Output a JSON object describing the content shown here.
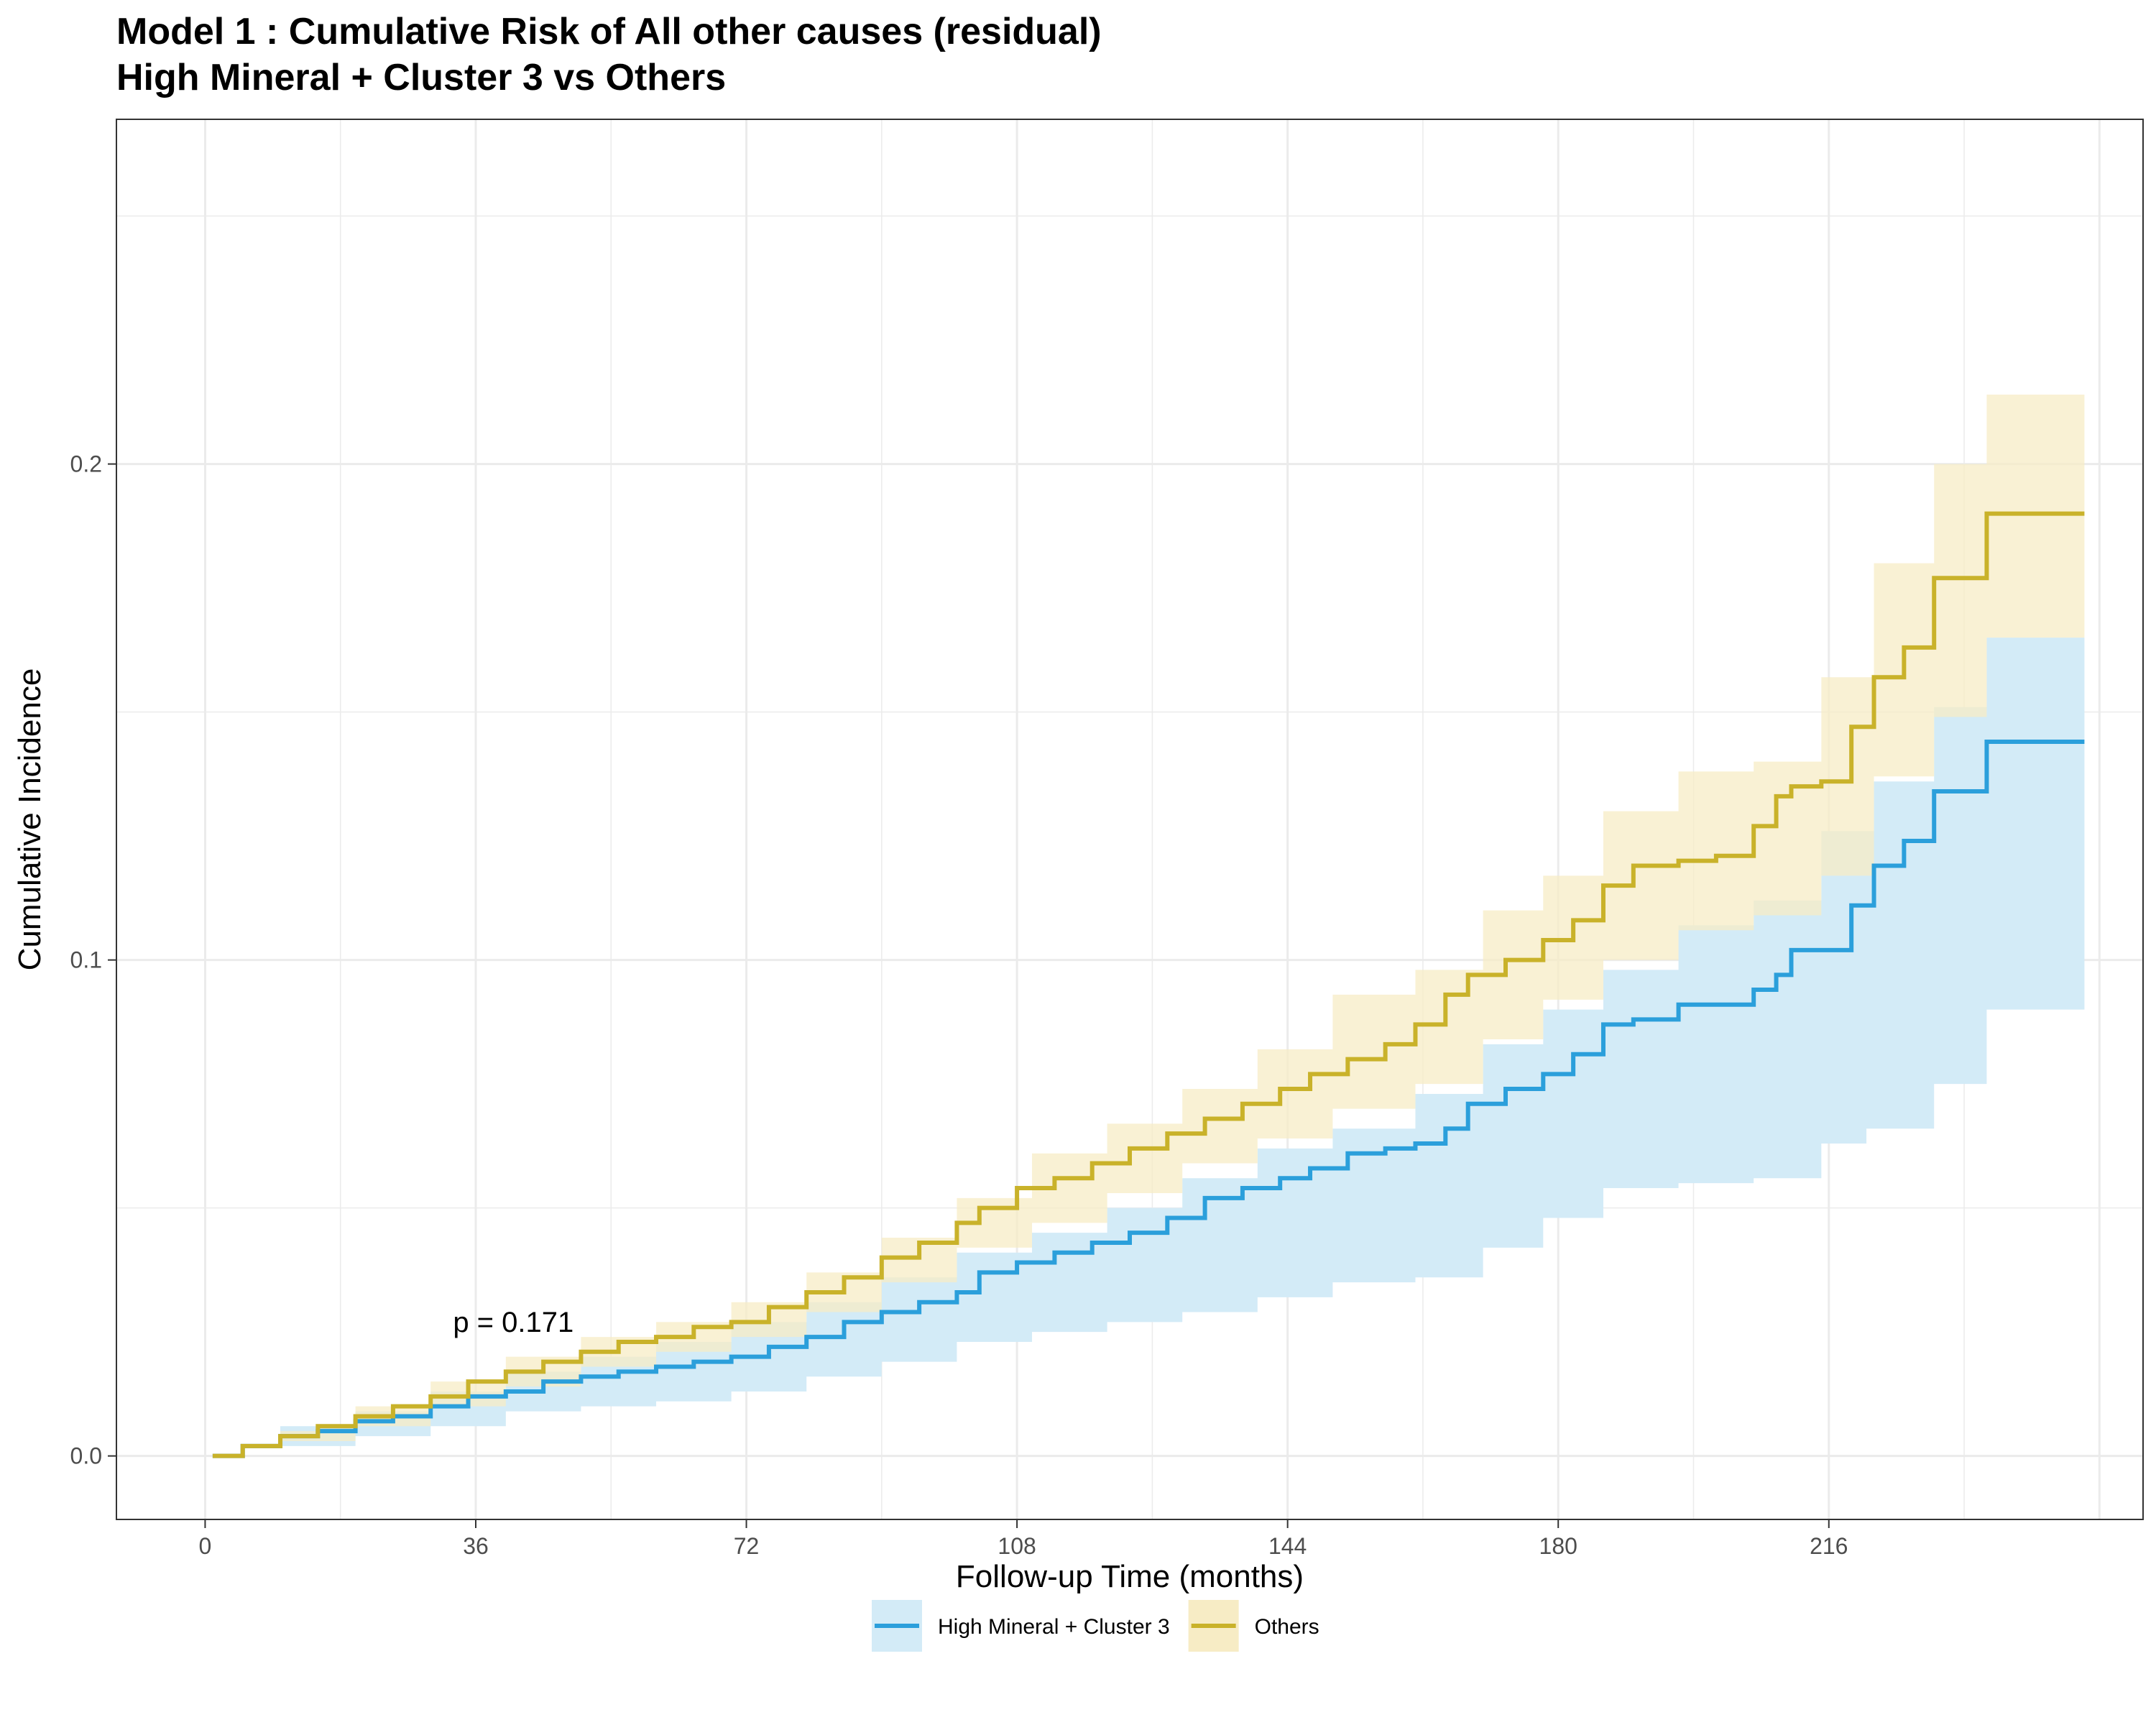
{
  "chart_data": {
    "type": "line",
    "title": "Model 1 : Cumulative Risk of All other causes (residual)",
    "subtitle": "High Mineral + Cluster 3 vs Others",
    "xlabel": "Follow-up Time (months)",
    "ylabel": "Cumulative Incidence",
    "xlim": [
      -11.8,
      257.8
    ],
    "ylim": [
      -0.0128,
      0.2695
    ],
    "x_ticks": [
      0,
      36,
      72,
      108,
      144,
      180,
      216
    ],
    "x_tick_labels": [
      "0",
      "36",
      "72",
      "108",
      "144",
      "180",
      "216"
    ],
    "y_ticks": [
      0.0,
      0.1,
      0.2
    ],
    "y_tick_labels": [
      "0.0",
      "0.1",
      "0.2"
    ],
    "annotation": {
      "text": "p = 0.171",
      "x": 41,
      "y": 0.025
    },
    "grid": true,
    "legend_position": "bottom",
    "series": [
      {
        "name": "High Mineral + Cluster 3",
        "color": "#2b9fdb",
        "band_color": "#d3ebf7",
        "step": true,
        "points": [
          [
            1,
            0
          ],
          [
            5,
            0.002
          ],
          [
            10,
            0.004
          ],
          [
            15,
            0.005
          ],
          [
            20,
            0.007
          ],
          [
            25,
            0.008
          ],
          [
            30,
            0.01
          ],
          [
            35,
            0.012
          ],
          [
            40,
            0.013
          ],
          [
            45,
            0.015
          ],
          [
            50,
            0.016
          ],
          [
            55,
            0.017
          ],
          [
            60,
            0.018
          ],
          [
            65,
            0.019
          ],
          [
            70,
            0.02
          ],
          [
            75,
            0.022
          ],
          [
            80,
            0.024
          ],
          [
            85,
            0.027
          ],
          [
            90,
            0.029
          ],
          [
            95,
            0.031
          ],
          [
            100,
            0.033
          ],
          [
            103,
            0.037
          ],
          [
            108,
            0.039
          ],
          [
            113,
            0.041
          ],
          [
            118,
            0.043
          ],
          [
            123,
            0.045
          ],
          [
            128,
            0.048
          ],
          [
            133,
            0.052
          ],
          [
            138,
            0.054
          ],
          [
            143,
            0.056
          ],
          [
            147,
            0.058
          ],
          [
            152,
            0.061
          ],
          [
            157,
            0.062
          ],
          [
            161,
            0.063
          ],
          [
            165,
            0.066
          ],
          [
            168,
            0.071
          ],
          [
            173,
            0.074
          ],
          [
            178,
            0.077
          ],
          [
            182,
            0.081
          ],
          [
            186,
            0.087
          ],
          [
            190,
            0.088
          ],
          [
            196,
            0.091
          ],
          [
            201,
            0.091
          ],
          [
            206,
            0.094
          ],
          [
            209,
            0.097
          ],
          [
            211,
            0.102
          ],
          [
            215,
            0.102
          ],
          [
            219,
            0.111
          ],
          [
            222,
            0.119
          ],
          [
            226,
            0.124
          ],
          [
            230,
            0.134
          ],
          [
            237,
            0.144
          ],
          [
            250,
            0.144
          ]
        ],
        "lower": [
          [
            1,
            0
          ],
          [
            10,
            0.002
          ],
          [
            20,
            0.004
          ],
          [
            30,
            0.006
          ],
          [
            40,
            0.009
          ],
          [
            50,
            0.01
          ],
          [
            60,
            0.011
          ],
          [
            70,
            0.013
          ],
          [
            80,
            0.016
          ],
          [
            90,
            0.019
          ],
          [
            100,
            0.023
          ],
          [
            110,
            0.025
          ],
          [
            120,
            0.027
          ],
          [
            130,
            0.029
          ],
          [
            140,
            0.032
          ],
          [
            150,
            0.035
          ],
          [
            161,
            0.036
          ],
          [
            170,
            0.042
          ],
          [
            178,
            0.048
          ],
          [
            186,
            0.054
          ],
          [
            196,
            0.055
          ],
          [
            206,
            0.056
          ],
          [
            215,
            0.063
          ],
          [
            221,
            0.066
          ],
          [
            230,
            0.075
          ],
          [
            237,
            0.09
          ],
          [
            250,
            0.09
          ]
        ],
        "upper": [
          [
            1,
            0
          ],
          [
            10,
            0.006
          ],
          [
            20,
            0.009
          ],
          [
            30,
            0.013
          ],
          [
            40,
            0.017
          ],
          [
            50,
            0.02
          ],
          [
            60,
            0.023
          ],
          [
            70,
            0.027
          ],
          [
            80,
            0.031
          ],
          [
            90,
            0.036
          ],
          [
            100,
            0.041
          ],
          [
            110,
            0.045
          ],
          [
            120,
            0.05
          ],
          [
            130,
            0.056
          ],
          [
            140,
            0.062
          ],
          [
            150,
            0.066
          ],
          [
            161,
            0.073
          ],
          [
            170,
            0.083
          ],
          [
            178,
            0.09
          ],
          [
            186,
            0.098
          ],
          [
            196,
            0.107
          ],
          [
            206,
            0.112
          ],
          [
            215,
            0.126
          ],
          [
            222,
            0.136
          ],
          [
            230,
            0.151
          ],
          [
            237,
            0.165
          ],
          [
            250,
            0.165
          ]
        ]
      },
      {
        "name": "Others",
        "color": "#c9b22a",
        "band_color": "#f7ecc5",
        "step": true,
        "points": [
          [
            1,
            0
          ],
          [
            5,
            0.002
          ],
          [
            10,
            0.004
          ],
          [
            15,
            0.006
          ],
          [
            20,
            0.008
          ],
          [
            25,
            0.01
          ],
          [
            30,
            0.012
          ],
          [
            35,
            0.015
          ],
          [
            40,
            0.017
          ],
          [
            45,
            0.019
          ],
          [
            50,
            0.021
          ],
          [
            55,
            0.023
          ],
          [
            60,
            0.024
          ],
          [
            65,
            0.026
          ],
          [
            70,
            0.027
          ],
          [
            75,
            0.03
          ],
          [
            80,
            0.033
          ],
          [
            85,
            0.036
          ],
          [
            90,
            0.04
          ],
          [
            95,
            0.043
          ],
          [
            100,
            0.047
          ],
          [
            103,
            0.05
          ],
          [
            108,
            0.054
          ],
          [
            113,
            0.056
          ],
          [
            118,
            0.059
          ],
          [
            123,
            0.062
          ],
          [
            128,
            0.065
          ],
          [
            133,
            0.068
          ],
          [
            138,
            0.071
          ],
          [
            143,
            0.074
          ],
          [
            147,
            0.077
          ],
          [
            152,
            0.08
          ],
          [
            157,
            0.083
          ],
          [
            161,
            0.087
          ],
          [
            165,
            0.093
          ],
          [
            168,
            0.097
          ],
          [
            173,
            0.1
          ],
          [
            178,
            0.104
          ],
          [
            182,
            0.108
          ],
          [
            186,
            0.115
          ],
          [
            190,
            0.119
          ],
          [
            196,
            0.12
          ],
          [
            201,
            0.121
          ],
          [
            206,
            0.127
          ],
          [
            209,
            0.133
          ],
          [
            211,
            0.135
          ],
          [
            215,
            0.136
          ],
          [
            219,
            0.147
          ],
          [
            222,
            0.157
          ],
          [
            226,
            0.163
          ],
          [
            230,
            0.177
          ],
          [
            237,
            0.19
          ],
          [
            250,
            0.19
          ]
        ],
        "lower": [
          [
            1,
            0
          ],
          [
            10,
            0.003
          ],
          [
            20,
            0.006
          ],
          [
            30,
            0.01
          ],
          [
            40,
            0.014
          ],
          [
            50,
            0.018
          ],
          [
            60,
            0.021
          ],
          [
            70,
            0.024
          ],
          [
            80,
            0.029
          ],
          [
            90,
            0.035
          ],
          [
            100,
            0.042
          ],
          [
            110,
            0.047
          ],
          [
            120,
            0.053
          ],
          [
            130,
            0.059
          ],
          [
            140,
            0.064
          ],
          [
            150,
            0.07
          ],
          [
            161,
            0.075
          ],
          [
            170,
            0.084
          ],
          [
            178,
            0.092
          ],
          [
            186,
            0.1
          ],
          [
            196,
            0.106
          ],
          [
            206,
            0.109
          ],
          [
            215,
            0.117
          ],
          [
            222,
            0.137
          ],
          [
            230,
            0.149
          ],
          [
            237,
            0.165
          ],
          [
            250,
            0.165
          ]
        ],
        "upper": [
          [
            1,
            0
          ],
          [
            10,
            0.005
          ],
          [
            20,
            0.01
          ],
          [
            30,
            0.015
          ],
          [
            40,
            0.02
          ],
          [
            50,
            0.024
          ],
          [
            60,
            0.027
          ],
          [
            70,
            0.031
          ],
          [
            80,
            0.037
          ],
          [
            90,
            0.044
          ],
          [
            100,
            0.052
          ],
          [
            110,
            0.061
          ],
          [
            120,
            0.067
          ],
          [
            130,
            0.074
          ],
          [
            140,
            0.082
          ],
          [
            150,
            0.093
          ],
          [
            161,
            0.098
          ],
          [
            170,
            0.11
          ],
          [
            178,
            0.117
          ],
          [
            186,
            0.13
          ],
          [
            196,
            0.138
          ],
          [
            206,
            0.14
          ],
          [
            215,
            0.157
          ],
          [
            222,
            0.18
          ],
          [
            230,
            0.2
          ],
          [
            237,
            0.214
          ],
          [
            250,
            0.214
          ]
        ]
      }
    ]
  }
}
